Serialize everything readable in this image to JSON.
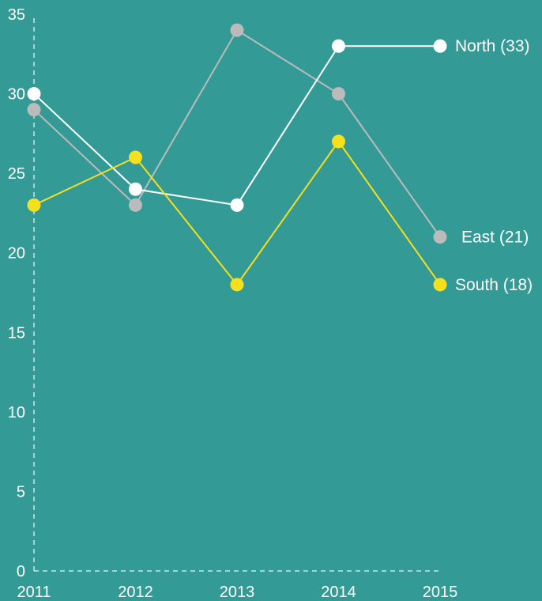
{
  "chart_data": {
    "type": "line",
    "title": "",
    "xlabel": "",
    "ylabel": "",
    "x": [
      "2011",
      "2012",
      "2013",
      "2014",
      "2015"
    ],
    "ylim": [
      0,
      35
    ],
    "yticks": [
      0,
      5,
      10,
      15,
      20,
      25,
      30,
      35
    ],
    "grid": false,
    "background": "#349A96",
    "series": [
      {
        "name": "East",
        "label": "East (21)",
        "color": "#BBBBBB",
        "values": [
          29,
          23,
          34,
          30,
          21
        ]
      },
      {
        "name": "North",
        "label": "North (33)",
        "color": "#FFFFFF",
        "values": [
          30,
          24,
          23,
          33,
          33
        ]
      },
      {
        "name": "South",
        "label": "South (18)",
        "color": "#F4E01C",
        "values": [
          23,
          26,
          18,
          27,
          18
        ]
      }
    ]
  }
}
